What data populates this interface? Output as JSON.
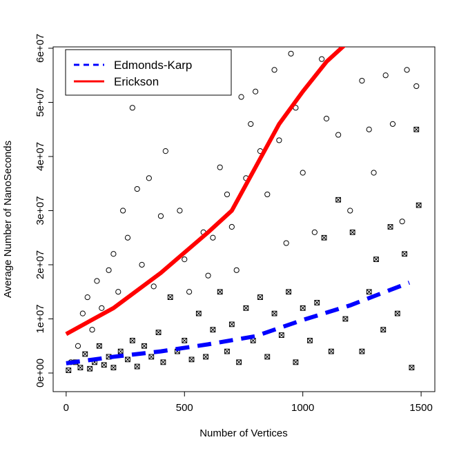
{
  "chart_data": {
    "type": "scatter",
    "xlabel": "Number of Vertices",
    "ylabel": "Average Number of NanoSeconds",
    "xlim": [
      -55,
      1558
    ],
    "ylim": [
      -3440000,
      60250000
    ],
    "xticks": [
      0,
      500,
      1000,
      1500
    ],
    "yticks": [
      {
        "value": 0,
        "label": "0e+00"
      },
      {
        "value": 10000000,
        "label": "1e+07"
      },
      {
        "value": 20000000,
        "label": "2e+07"
      },
      {
        "value": 30000000,
        "label": "3e+07"
      },
      {
        "value": 40000000,
        "label": "4e+07"
      },
      {
        "value": 50000000,
        "label": "5e+07"
      },
      {
        "value": 60000000,
        "label": "6e+07"
      }
    ],
    "legend": "top-left",
    "series": [
      {
        "name": "Edmonds-Karp",
        "color": "#0000ff",
        "dash": true,
        "x": [
          0,
          200,
          400,
          600,
          800,
          1000,
          1200,
          1450
        ],
        "values": [
          1800000,
          3000000,
          4000000,
          5300000,
          6800000,
          9800000,
          12500000,
          16700000
        ]
      },
      {
        "name": "Erickson",
        "color": "#ff0000",
        "dash": false,
        "x": [
          0,
          200,
          400,
          600,
          700,
          800,
          900,
          1000,
          1100,
          1175
        ],
        "values": [
          7200000,
          12000000,
          18500000,
          26000000,
          30000000,
          38000000,
          46000000,
          52000000,
          57500000,
          60500000
        ]
      }
    ],
    "points": [
      {
        "marker": "circle",
        "color": "#000000",
        "x": [
          20,
          50,
          70,
          90,
          110,
          130,
          150,
          180,
          200,
          220,
          240,
          260,
          280,
          300,
          320,
          350,
          370,
          400,
          420,
          450,
          480,
          500,
          520,
          560,
          580,
          600,
          620,
          650,
          680,
          700,
          720,
          740,
          760,
          780,
          800,
          820,
          850,
          880,
          900,
          930,
          950,
          970,
          1000,
          1050,
          1080,
          1100,
          1150,
          1200,
          1250,
          1280,
          1300,
          1350,
          1380,
          1420,
          1440,
          1480
        ],
        "values": [
          2000000,
          5000000,
          11000000,
          14000000,
          8000000,
          17000000,
          12000000,
          19000000,
          22000000,
          15000000,
          30000000,
          25000000,
          49000000,
          34000000,
          20000000,
          36000000,
          16000000,
          29000000,
          41000000,
          53000000,
          30000000,
          21000000,
          15000000,
          54000000,
          26000000,
          18000000,
          25000000,
          38000000,
          33000000,
          27000000,
          19000000,
          51000000,
          36000000,
          46000000,
          52000000,
          41000000,
          33000000,
          56000000,
          43000000,
          24000000,
          59000000,
          49000000,
          37000000,
          26000000,
          58000000,
          47000000,
          44000000,
          30000000,
          54000000,
          45000000,
          37000000,
          55000000,
          46000000,
          28000000,
          56000000,
          53000000
        ]
      },
      {
        "marker": "crossed-square",
        "color": "#000000",
        "x": [
          10,
          40,
          60,
          80,
          100,
          120,
          140,
          160,
          180,
          200,
          230,
          260,
          280,
          300,
          330,
          360,
          390,
          410,
          440,
          470,
          500,
          530,
          560,
          590,
          620,
          650,
          680,
          700,
          730,
          760,
          790,
          820,
          850,
          880,
          910,
          940,
          970,
          1000,
          1030,
          1060,
          1090,
          1120,
          1150,
          1180,
          1210,
          1250,
          1280,
          1310,
          1340,
          1370,
          1400,
          1430,
          1460,
          1480,
          1490
        ],
        "values": [
          500000,
          2000000,
          1000000,
          3500000,
          800000,
          2000000,
          5000000,
          1500000,
          3000000,
          1000000,
          4000000,
          2500000,
          6000000,
          1200000,
          5000000,
          3000000,
          7500000,
          2000000,
          14000000,
          4000000,
          6000000,
          2500000,
          11000000,
          3000000,
          8000000,
          15000000,
          4000000,
          9000000,
          2000000,
          12000000,
          6000000,
          14000000,
          3000000,
          11000000,
          7000000,
          15000000,
          2000000,
          12000000,
          6000000,
          13000000,
          25000000,
          4000000,
          32000000,
          10000000,
          26000000,
          4000000,
          15000000,
          21000000,
          8000000,
          27000000,
          11000000,
          22000000,
          1000000,
          45000000,
          31000000
        ]
      }
    ]
  }
}
